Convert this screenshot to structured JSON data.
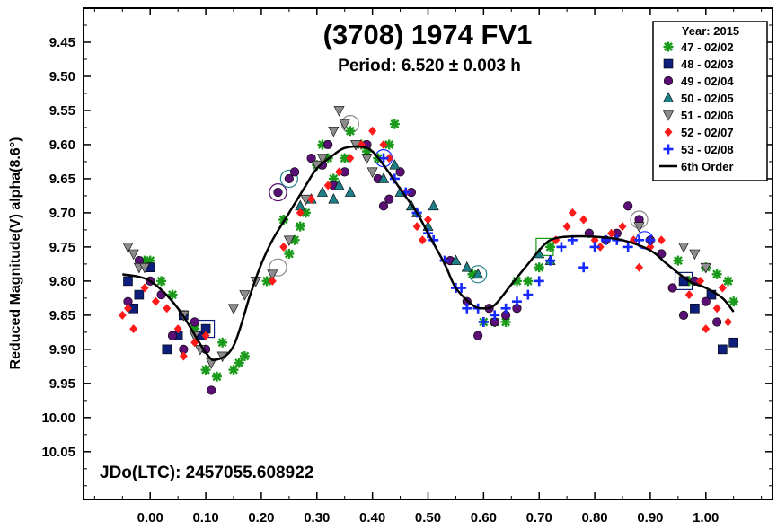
{
  "chart_data": {
    "type": "scatter",
    "title": "(3708) 1974 FV1",
    "subtitle": "Period: 6.520 ± 0.003 h",
    "ylabel": "Reduced Magnitude(V) alpha(8.6°)",
    "xlabel": "",
    "annotation": "JDo(LTC): 2457055.608922",
    "xlim": [
      -0.12,
      1.12
    ],
    "ylim": [
      10.12,
      9.4
    ],
    "y_inverted": true,
    "x_ticks": [
      "0.00",
      "0.10",
      "0.20",
      "0.30",
      "0.40",
      "0.50",
      "0.60",
      "0.70",
      "0.80",
      "0.90",
      "1.00"
    ],
    "y_ticks": [
      "9.45",
      "9.50",
      "9.55",
      "9.60",
      "9.65",
      "9.70",
      "9.75",
      "9.80",
      "9.85",
      "9.90",
      "9.95",
      "10.00",
      "10.05"
    ],
    "legend_title": "Year: 2015",
    "legend_position": "top-right",
    "series": [
      {
        "name": "47 - 02/02",
        "marker": "asterisk",
        "color": "#1a9a1a",
        "points": [
          [
            -0.01,
            9.77
          ],
          [
            0.0,
            9.77
          ],
          [
            0.02,
            9.8
          ],
          [
            0.04,
            9.82
          ],
          [
            0.06,
            9.85
          ],
          [
            0.08,
            9.87
          ],
          [
            0.1,
            9.93
          ],
          [
            0.12,
            9.94
          ],
          [
            0.13,
            9.89
          ],
          [
            0.15,
            9.93
          ],
          [
            0.16,
            9.92
          ],
          [
            0.17,
            9.91
          ],
          [
            0.21,
            9.8
          ],
          [
            0.24,
            9.71
          ],
          [
            0.25,
            9.76
          ],
          [
            0.26,
            9.74
          ],
          [
            0.27,
            9.72
          ],
          [
            0.28,
            9.7
          ],
          [
            0.3,
            9.63
          ],
          [
            0.31,
            9.6
          ],
          [
            0.32,
            9.62
          ],
          [
            0.33,
            9.65
          ],
          [
            0.35,
            9.62
          ],
          [
            0.36,
            9.58
          ],
          [
            0.38,
            9.6
          ],
          [
            0.39,
            9.61
          ],
          [
            0.41,
            9.62
          ],
          [
            0.43,
            9.6
          ],
          [
            0.44,
            9.57
          ],
          [
            0.58,
            9.79
          ],
          [
            0.6,
            9.86
          ],
          [
            0.62,
            9.86
          ],
          [
            0.64,
            9.86
          ],
          [
            0.66,
            9.8
          ],
          [
            0.68,
            9.8
          ],
          [
            0.7,
            9.78
          ],
          [
            0.72,
            9.75
          ],
          [
            0.95,
            9.77
          ],
          [
            0.97,
            9.8
          ],
          [
            1.0,
            9.78
          ],
          [
            1.02,
            9.79
          ],
          [
            1.04,
            9.8
          ],
          [
            1.05,
            9.83
          ]
        ]
      },
      {
        "name": "48 - 02/03",
        "marker": "square",
        "color": "#0d1f7a",
        "points": [
          [
            -0.04,
            9.8
          ],
          [
            -0.03,
            9.84
          ],
          [
            -0.02,
            9.82
          ],
          [
            0.0,
            9.78
          ],
          [
            0.03,
            9.9
          ],
          [
            0.05,
            9.88
          ],
          [
            0.06,
            9.85
          ],
          [
            0.09,
            9.88
          ],
          [
            0.1,
            9.87
          ],
          [
            0.96,
            9.8
          ],
          [
            0.98,
            9.84
          ],
          [
            1.01,
            9.82
          ],
          [
            1.03,
            9.9
          ],
          [
            1.05,
            9.89
          ]
        ]
      },
      {
        "name": "49 - 02/04",
        "marker": "circle",
        "color": "#5a0f75",
        "points": [
          [
            -0.04,
            9.83
          ],
          [
            -0.02,
            9.77
          ],
          [
            0.0,
            9.8
          ],
          [
            0.02,
            9.82
          ],
          [
            0.04,
            9.88
          ],
          [
            0.06,
            9.9
          ],
          [
            0.08,
            9.86
          ],
          [
            0.1,
            9.9
          ],
          [
            0.11,
            9.96
          ],
          [
            0.23,
            9.67
          ],
          [
            0.25,
            9.65
          ],
          [
            0.26,
            9.64
          ],
          [
            0.29,
            9.62
          ],
          [
            0.31,
            9.63
          ],
          [
            0.32,
            9.6
          ],
          [
            0.33,
            9.66
          ],
          [
            0.35,
            9.64
          ],
          [
            0.39,
            9.6
          ],
          [
            0.41,
            9.65
          ],
          [
            0.42,
            9.69
          ],
          [
            0.43,
            9.68
          ],
          [
            0.45,
            9.64
          ],
          [
            0.47,
            9.67
          ],
          [
            0.54,
            9.77
          ],
          [
            0.57,
            9.83
          ],
          [
            0.59,
            9.88
          ],
          [
            0.61,
            9.84
          ],
          [
            0.62,
            9.86
          ],
          [
            0.64,
            9.85
          ],
          [
            0.66,
            9.84
          ],
          [
            0.79,
            9.73
          ],
          [
            0.82,
            9.74
          ],
          [
            0.84,
            9.73
          ],
          [
            0.86,
            9.69
          ],
          [
            0.88,
            9.71
          ],
          [
            0.9,
            9.74
          ],
          [
            0.92,
            9.76
          ],
          [
            0.94,
            9.81
          ],
          [
            0.96,
            9.85
          ],
          [
            0.98,
            9.8
          ],
          [
            1.0,
            9.83
          ],
          [
            1.02,
            9.86
          ]
        ]
      },
      {
        "name": "50 - 02/05",
        "marker": "triangle",
        "color": "#1f7f87",
        "points": [
          [
            0.27,
            9.69
          ],
          [
            0.29,
            9.68
          ],
          [
            0.31,
            9.67
          ],
          [
            0.33,
            9.68
          ],
          [
            0.34,
            9.66
          ],
          [
            0.36,
            9.67
          ],
          [
            0.42,
            9.65
          ],
          [
            0.44,
            9.63
          ],
          [
            0.45,
            9.67
          ],
          [
            0.47,
            9.69
          ],
          [
            0.48,
            9.7
          ],
          [
            0.5,
            9.72
          ],
          [
            0.51,
            9.69
          ],
          [
            0.55,
            9.77
          ],
          [
            0.57,
            9.78
          ],
          [
            0.59,
            9.79
          ],
          [
            0.7,
            9.76
          ],
          [
            0.72,
            9.77
          ]
        ]
      },
      {
        "name": "51 - 02/06",
        "marker": "triangle-down",
        "color": "#8c8c8c",
        "points": [
          [
            -0.04,
            9.75
          ],
          [
            -0.03,
            9.76
          ],
          [
            -0.02,
            9.78
          ],
          [
            -0.01,
            9.78
          ],
          [
            0.06,
            9.85
          ],
          [
            0.08,
            9.88
          ],
          [
            0.09,
            9.9
          ],
          [
            0.11,
            9.92
          ],
          [
            0.13,
            9.91
          ],
          [
            0.15,
            9.84
          ],
          [
            0.17,
            9.82
          ],
          [
            0.19,
            9.8
          ],
          [
            0.22,
            9.79
          ],
          [
            0.25,
            9.74
          ],
          [
            0.28,
            9.68
          ],
          [
            0.3,
            9.63
          ],
          [
            0.31,
            9.62
          ],
          [
            0.33,
            9.58
          ],
          [
            0.34,
            9.55
          ],
          [
            0.35,
            9.57
          ],
          [
            0.37,
            9.6
          ],
          [
            0.39,
            9.62
          ],
          [
            0.4,
            9.64
          ],
          [
            0.88,
            9.72
          ],
          [
            0.96,
            9.75
          ],
          [
            0.98,
            9.76
          ],
          [
            1.0,
            9.78
          ]
        ]
      },
      {
        "name": "52 - 02/07",
        "marker": "diamond",
        "color": "#ff1a1a",
        "points": [
          [
            -0.05,
            9.85
          ],
          [
            -0.04,
            9.84
          ],
          [
            -0.03,
            9.87
          ],
          [
            -0.01,
            9.81
          ],
          [
            0.01,
            9.83
          ],
          [
            0.03,
            9.84
          ],
          [
            0.05,
            9.87
          ],
          [
            0.06,
            9.91
          ],
          [
            0.08,
            9.89
          ],
          [
            0.1,
            9.88
          ],
          [
            0.22,
            9.8
          ],
          [
            0.24,
            9.75
          ],
          [
            0.27,
            9.7
          ],
          [
            0.29,
            9.68
          ],
          [
            0.32,
            9.66
          ],
          [
            0.34,
            9.64
          ],
          [
            0.36,
            9.62
          ],
          [
            0.38,
            9.6
          ],
          [
            0.4,
            9.58
          ],
          [
            0.42,
            9.6
          ],
          [
            0.43,
            9.62
          ],
          [
            0.46,
            9.67
          ],
          [
            0.48,
            9.72
          ],
          [
            0.49,
            9.74
          ],
          [
            0.5,
            9.71
          ],
          [
            0.73,
            9.74
          ],
          [
            0.75,
            9.72
          ],
          [
            0.76,
            9.7
          ],
          [
            0.78,
            9.71
          ],
          [
            0.8,
            9.74
          ],
          [
            0.81,
            9.75
          ],
          [
            0.83,
            9.73
          ],
          [
            0.85,
            9.72
          ],
          [
            0.87,
            9.74
          ],
          [
            0.88,
            9.78
          ],
          [
            0.9,
            9.75
          ],
          [
            0.92,
            9.74
          ],
          [
            0.97,
            9.82
          ],
          [
            0.99,
            9.8
          ],
          [
            1.0,
            9.87
          ],
          [
            1.02,
            9.84
          ],
          [
            1.03,
            9.81
          ],
          [
            1.04,
            9.86
          ]
        ]
      },
      {
        "name": "53 - 02/08",
        "marker": "plus",
        "color": "#1428ff",
        "points": [
          [
            0.42,
            9.62
          ],
          [
            0.44,
            9.65
          ],
          [
            0.46,
            9.67
          ],
          [
            0.48,
            9.7
          ],
          [
            0.5,
            9.73
          ],
          [
            0.51,
            9.74
          ],
          [
            0.53,
            9.77
          ],
          [
            0.55,
            9.81
          ],
          [
            0.56,
            9.81
          ],
          [
            0.57,
            9.84
          ],
          [
            0.59,
            9.84
          ],
          [
            0.6,
            9.86
          ],
          [
            0.62,
            9.85
          ],
          [
            0.64,
            9.84
          ],
          [
            0.66,
            9.83
          ],
          [
            0.68,
            9.82
          ],
          [
            0.7,
            9.8
          ],
          [
            0.72,
            9.77
          ],
          [
            0.74,
            9.75
          ],
          [
            0.76,
            9.74
          ],
          [
            0.78,
            9.78
          ],
          [
            0.8,
            9.75
          ],
          [
            0.82,
            9.74
          ],
          [
            0.84,
            9.74
          ],
          [
            0.86,
            9.75
          ],
          [
            0.88,
            9.74
          ],
          [
            0.9,
            9.74
          ]
        ]
      }
    ],
    "highlighted_points": [
      {
        "series": "48 - 02/03",
        "x": 0.1,
        "y": 9.87
      },
      {
        "series": "49 - 02/04",
        "x": 0.23,
        "y": 9.67
      },
      {
        "series": "50 - 02/05",
        "x": 0.25,
        "y": 9.65
      },
      {
        "series": "51 - 02/06",
        "x": 0.23,
        "y": 9.78
      },
      {
        "series": "51 - 02/06",
        "x": 0.36,
        "y": 9.57
      },
      {
        "series": "53 - 02/08",
        "x": 0.42,
        "y": 9.62
      },
      {
        "series": "50 - 02/05",
        "x": 0.59,
        "y": 9.79
      },
      {
        "series": "47 - 02/02",
        "x": 0.71,
        "y": 9.75
      },
      {
        "series": "51 - 02/06",
        "x": 0.88,
        "y": 9.71
      },
      {
        "series": "53 - 02/08",
        "x": 0.89,
        "y": 9.74
      },
      {
        "series": "48 - 02/03",
        "x": 0.96,
        "y": 9.8
      }
    ],
    "fit": {
      "name": "6th Order",
      "color": "#000000",
      "points": [
        [
          -0.05,
          9.79
        ],
        [
          0.0,
          9.8
        ],
        [
          0.05,
          9.84
        ],
        [
          0.1,
          9.905
        ],
        [
          0.12,
          9.915
        ],
        [
          0.15,
          9.895
        ],
        [
          0.18,
          9.82
        ],
        [
          0.2,
          9.775
        ],
        [
          0.22,
          9.74
        ],
        [
          0.25,
          9.7
        ],
        [
          0.28,
          9.66
        ],
        [
          0.3,
          9.635
        ],
        [
          0.33,
          9.615
        ],
        [
          0.35,
          9.605
        ],
        [
          0.38,
          9.603
        ],
        [
          0.4,
          9.61
        ],
        [
          0.42,
          9.63
        ],
        [
          0.45,
          9.665
        ],
        [
          0.48,
          9.7
        ],
        [
          0.5,
          9.73
        ],
        [
          0.53,
          9.775
        ],
        [
          0.55,
          9.81
        ],
        [
          0.58,
          9.835
        ],
        [
          0.6,
          9.84
        ],
        [
          0.62,
          9.835
        ],
        [
          0.65,
          9.805
        ],
        [
          0.68,
          9.775
        ],
        [
          0.7,
          9.755
        ],
        [
          0.72,
          9.74
        ],
        [
          0.75,
          9.735
        ],
        [
          0.8,
          9.735
        ],
        [
          0.85,
          9.74
        ],
        [
          0.9,
          9.755
        ],
        [
          0.93,
          9.775
        ],
        [
          0.97,
          9.8
        ],
        [
          1.0,
          9.81
        ],
        [
          1.03,
          9.825
        ],
        [
          1.05,
          9.845
        ]
      ]
    }
  }
}
